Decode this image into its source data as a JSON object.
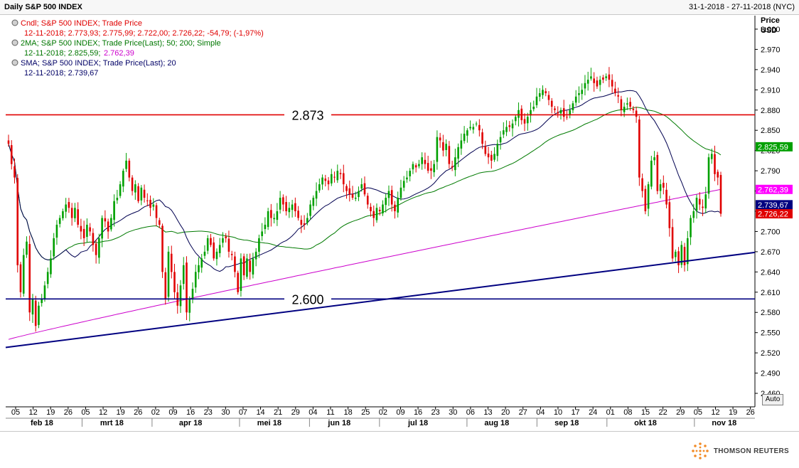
{
  "header": {
    "title": "Daily S&P 500 INDEX",
    "date_range": "31-1-2018 - 27-11-2018 (NYC)"
  },
  "legend": [
    {
      "name": "Cndl; S&P 500 INDEX; Trade Price",
      "values": "12-11-2018; 2.773,93; 2.775,99; 2.722,00; 2.726,22; -54,79; (-1,97%)",
      "color": "#e00000"
    },
    {
      "name": "2MA; S&P 500 INDEX; Trade Price(Last);  50; 200; Simple",
      "values_a": "12-11-2018; 2.825,59;",
      "values_b": "2.762,39",
      "color": "#007700",
      "color_b": "#cc00cc"
    },
    {
      "name": "SMA; S&P 500 INDEX; Trade Price(Last);  20",
      "values": "12-11-2018; 2.739,67",
      "color": "#000066"
    }
  ],
  "price_axis": {
    "label_line1": "Price",
    "label_line2": "USD",
    "auto_label": "Auto"
  },
  "footer": {
    "brand": "THOMSON REUTERS"
  },
  "colors": {
    "up": "#00a000",
    "down": "#e00000",
    "sma20": "#000050",
    "ma50": "#007a00",
    "ma200": "#cc00cc",
    "support": "#000080",
    "resistance": "#e00000"
  },
  "chart_data": {
    "type": "candlestick",
    "y_ticks": [
      2460,
      2490,
      2520,
      2550,
      2580,
      2610,
      2640,
      2670,
      2700,
      2730,
      2760,
      2790,
      2820,
      2850,
      2880,
      2910,
      2940,
      2970,
      3000
    ],
    "y_tick_labels": [
      "2.460",
      "2.490",
      "2.520",
      "2.550",
      "2.580",
      "2.610",
      "2.640",
      "2.670",
      "2.700",
      "2.730",
      "2.760",
      "2.790",
      "2.820",
      "2.850",
      "2.880",
      "2.910",
      "2.940",
      "2.970",
      "3.000"
    ],
    "ylim": [
      2440,
      3020
    ],
    "x_day_ticks": [
      "05",
      "12",
      "19",
      "26",
      "05",
      "12",
      "19",
      "26",
      "02",
      "09",
      "16",
      "23",
      "30",
      "07",
      "14",
      "21",
      "29",
      "04",
      "11",
      "18",
      "25",
      "02",
      "09",
      "16",
      "23",
      "30",
      "06",
      "13",
      "20",
      "27",
      "04",
      "10",
      "17",
      "24",
      "01",
      "08",
      "15",
      "22",
      "29",
      "05",
      "12",
      "19",
      "26"
    ],
    "x_month_labels": [
      "feb 18",
      "mrt 18",
      "apr 18",
      "mei 18",
      "jun 18",
      "jul 18",
      "aug 18",
      "sep 18",
      "okt 18",
      "nov 18"
    ],
    "horizontal_lines": [
      {
        "label": "2.873",
        "value": 2873,
        "color": "#e00000"
      },
      {
        "label": "2.600",
        "value": 2600,
        "color": "#000080"
      }
    ],
    "trendline": {
      "points": [
        {
          "date": "2018-02-01",
          "value": 2528
        },
        {
          "date": "2018-11-26",
          "value": 2669
        }
      ],
      "color": "#000080"
    },
    "last_value_tags": [
      {
        "label": "2.825,59",
        "value": 2825.59,
        "color": "#00a000"
      },
      {
        "label": "2.762,39",
        "value": 2762.39,
        "color": "#ff00ff"
      },
      {
        "label": "2.739,67",
        "value": 2739.67,
        "color": "#000080"
      },
      {
        "label": "2.726,22",
        "value": 2726.22,
        "color": "#e00000"
      }
    ],
    "closes": [
      2830,
      2800,
      2780,
      2650,
      2610,
      2665,
      2685,
      2580,
      2600,
      2560,
      2590,
      2600,
      2620,
      2640,
      2660,
      2690,
      2710,
      2720,
      2730,
      2740,
      2735,
      2720,
      2735,
      2710,
      2700,
      2690,
      2710,
      2700,
      2680,
      2665,
      2690,
      2720,
      2715,
      2700,
      2720,
      2745,
      2750,
      2770,
      2790,
      2805,
      2780,
      2760,
      2770,
      2745,
      2765,
      2750,
      2745,
      2735,
      2740,
      2720,
      2710,
      2640,
      2600,
      2670,
      2640,
      2610,
      2590,
      2620,
      2650,
      2580,
      2600,
      2615,
      2640,
      2650,
      2660,
      2670,
      2690,
      2680,
      2660,
      2670,
      2680,
      2690,
      2690,
      2670,
      2665,
      2640,
      2610,
      2660,
      2635,
      2660,
      2640,
      2660,
      2670,
      2690,
      2700,
      2710,
      2730,
      2720,
      2720,
      2730,
      2750,
      2740,
      2730,
      2735,
      2740,
      2730,
      2720,
      2710,
      2710,
      2720,
      2740,
      2750,
      2760,
      2770,
      2780,
      2775,
      2770,
      2785,
      2780,
      2790,
      2785,
      2770,
      2760,
      2755,
      2750,
      2750,
      2760,
      2770,
      2755,
      2740,
      2730,
      2720,
      2735,
      2730,
      2740,
      2750,
      2760,
      2740,
      2730,
      2750,
      2765,
      2775,
      2780,
      2790,
      2800,
      2795,
      2800,
      2810,
      2800,
      2790,
      2790,
      2800,
      2840,
      2835,
      2820,
      2830,
      2800,
      2795,
      2810,
      2825,
      2835,
      2845,
      2850,
      2855,
      2855,
      2860,
      2850,
      2830,
      2815,
      2810,
      2805,
      2815,
      2830,
      2840,
      2850,
      2855,
      2855,
      2860,
      2870,
      2880,
      2865,
      2860,
      2870,
      2880,
      2885,
      2900,
      2905,
      2910,
      2905,
      2895,
      2885,
      2880,
      2875,
      2880,
      2870,
      2870,
      2880,
      2890,
      2900,
      2905,
      2910,
      2920,
      2925,
      2930,
      2920,
      2915,
      2925,
      2925,
      2930,
      2925,
      2915,
      2905,
      2900,
      2880,
      2885,
      2890,
      2885,
      2880,
      2870,
      2780,
      2760,
      2730,
      2770,
      2805,
      2810,
      2760,
      2770,
      2765,
      2740,
      2705,
      2660,
      2670,
      2650,
      2680,
      2650,
      2690,
      2720,
      2730,
      2750,
      2740,
      2735,
      2755,
      2810,
      2815,
      2785,
      2780,
      2726.22
    ]
  }
}
